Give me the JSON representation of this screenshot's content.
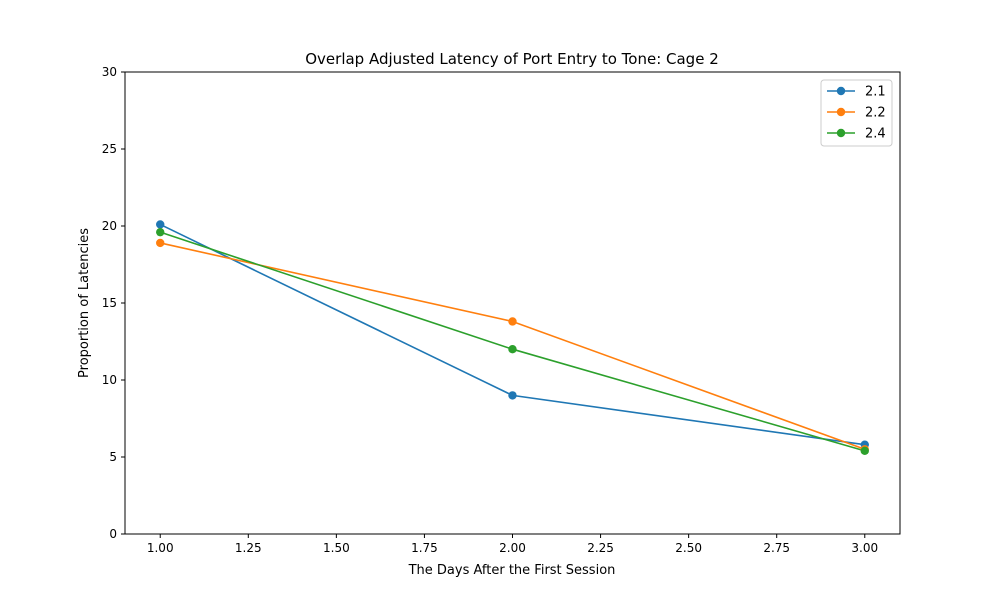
{
  "chart_data": {
    "type": "line",
    "title": "Overlap Adjusted Latency of Port Entry to Tone: Cage 2",
    "xlabel": "The Days After the First Session",
    "ylabel": "Proportion of Latencies",
    "xlim": [
      0.9,
      3.1
    ],
    "ylim": [
      0,
      30
    ],
    "xticks": [
      1.0,
      1.25,
      1.5,
      1.75,
      2.0,
      2.25,
      2.5,
      2.75,
      3.0
    ],
    "xtick_labels": [
      "1.00",
      "1.25",
      "1.50",
      "1.75",
      "2.00",
      "2.25",
      "2.50",
      "2.75",
      "3.00"
    ],
    "yticks": [
      0,
      5,
      10,
      15,
      20,
      25,
      30
    ],
    "ytick_labels": [
      "0",
      "5",
      "10",
      "15",
      "20",
      "25",
      "30"
    ],
    "grid": false,
    "legend_position": "top-right",
    "x": [
      1,
      2,
      3
    ],
    "series": [
      {
        "name": "2.1",
        "color": "#1f77b4",
        "values": [
          20.1,
          9.0,
          5.8
        ]
      },
      {
        "name": "2.2",
        "color": "#ff7f0e",
        "values": [
          18.9,
          13.8,
          5.5
        ]
      },
      {
        "name": "2.4",
        "color": "#2ca02c",
        "values": [
          19.6,
          12.0,
          5.4
        ]
      }
    ]
  }
}
